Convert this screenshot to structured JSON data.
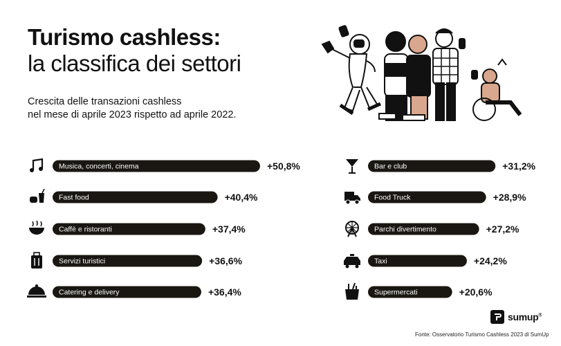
{
  "header": {
    "title_line1": "Turismo cashless:",
    "title_line2": "la classifica dei settori",
    "subtitle_line1": "Crescita delle transazioni cashless",
    "subtitle_line2": "nel mese di aprile 2023 rispetto ad aprile 2022."
  },
  "chart_data": {
    "type": "bar",
    "orientation": "horizontal",
    "title": "Turismo cashless: la classifica dei settori",
    "subtitle": "Crescita delle transazioni cashless nel mese di aprile 2023 rispetto ad aprile 2022.",
    "unit": "%",
    "categories": [
      "Musica, concerti, cinema",
      "Fast food",
      "Caffè e ristoranti",
      "Servizi turistici",
      "Catering e delivery",
      "Bar e club",
      "Food Truck",
      "Parchi divertimento",
      "Taxi",
      "Supermercati"
    ],
    "values": [
      50.8,
      40.4,
      37.4,
      36.6,
      36.4,
      31.2,
      28.9,
      27.2,
      24.2,
      20.6
    ],
    "value_labels": [
      "+50,8%",
      "+40,4%",
      "+37,4%",
      "+36,6%",
      "+36,4%",
      "+31,2%",
      "+28,9%",
      "+27,2%",
      "+24,2%",
      "+20,6%"
    ],
    "icons": [
      "music-icon",
      "fast-food-icon",
      "bowl-icon",
      "luggage-icon",
      "cloche-icon",
      "cocktail-icon",
      "truck-icon",
      "ferris-wheel-icon",
      "taxi-icon",
      "grocery-bag-icon"
    ],
    "columns": 2,
    "bar_color": "#1a1712",
    "label_color": "#ffffff"
  },
  "footer": {
    "source": "Fonte: Osservatorio Turismo Cashless 2023 di SumUp",
    "brand": "sumup",
    "brand_mark": "®"
  },
  "colors": {
    "bar": "#1a1712",
    "background": "#ffffff",
    "accent_skin": "#d9a78d"
  }
}
